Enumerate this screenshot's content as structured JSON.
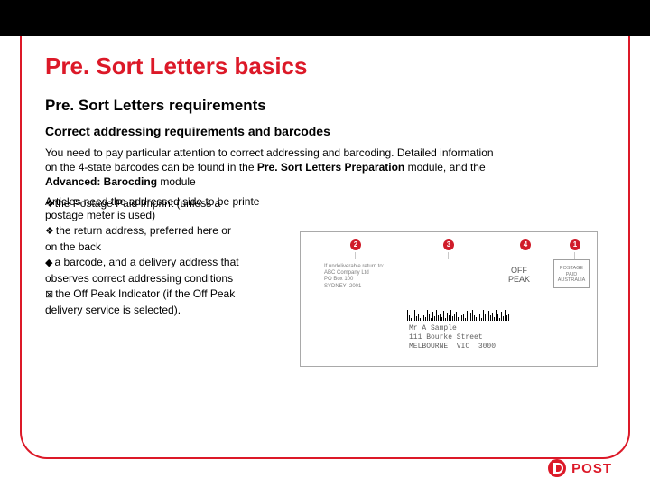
{
  "colors": {
    "brand": "#dc1928",
    "black": "#000000",
    "grayBorder": "#a9a9a9",
    "grayText": "#606060"
  },
  "title": "Pre. Sort Letters basics",
  "subtitle": "Pre. Sort Letters requirements",
  "subsub": "Correct addressing requirements and barcodes",
  "para1_a": "You need to pay particular attention to correct addressing and barcoding. Detailed information",
  "para1_b": "on the 4-state barcodes can be found in the ",
  "para1_bold1": "Pre. Sort Letters Preparation",
  "para1_c": " module, and the",
  "para1_bold2": "Advanced: Barocding",
  "para1_d": " module",
  "over_a": "Articles need the addressed side to be printe",
  "over_b": "the Postage Paid Imprint (unless a",
  "bullets": [
    {
      "glyph": "",
      "text": "postage meter is used)"
    },
    {
      "glyph": "❖",
      "text": "the return address, preferred here or"
    },
    {
      "glyph": "",
      "text": "on the back"
    },
    {
      "glyph": "◆",
      "text": "a barcode, and a delivery address that"
    },
    {
      "glyph": "",
      "text": "observes correct addressing conditions"
    },
    {
      "glyph": "⊠",
      "text": "the Off Peak Indicator (if the Off Peak"
    },
    {
      "glyph": "",
      "text": "delivery service is selected)."
    }
  ],
  "figure": {
    "nums": {
      "n1": "1",
      "n2": "2",
      "n3": "3",
      "n4": "4"
    },
    "return_lines": [
      "If undeliverable return to:",
      "ABC Company Ltd",
      "PO Box 100",
      "SYDNEY  2001"
    ],
    "offpeak_lines": [
      "OFF",
      "PEAK"
    ],
    "stamp_lines": [
      "POSTAGE",
      "PAID",
      "AUSTRALIA"
    ],
    "addr_lines": [
      "Mr A Sample",
      "111 Bourke Street",
      "MELBOURNE  VIC  3000"
    ],
    "barcode_heights": [
      12,
      6,
      3,
      9,
      12,
      5,
      8,
      3,
      11,
      6,
      4,
      12,
      7,
      3,
      10,
      5,
      12,
      6,
      8,
      4,
      11,
      3,
      9,
      6,
      12,
      5,
      7,
      10,
      4,
      12,
      6,
      8,
      3,
      11,
      5,
      9,
      12,
      6,
      4,
      10,
      7,
      3,
      12,
      8,
      5,
      11,
      6,
      9,
      4,
      12,
      7,
      3,
      10,
      5,
      12,
      6,
      8
    ]
  },
  "footer_brand": "POST"
}
